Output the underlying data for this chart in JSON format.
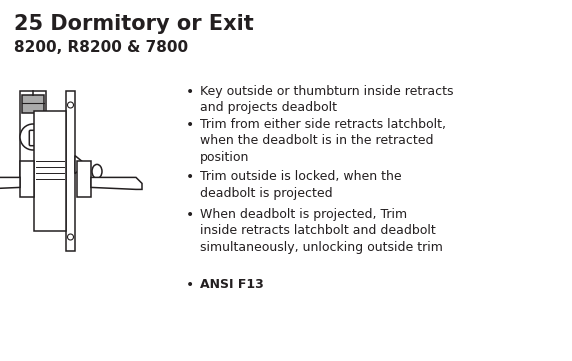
{
  "title": "25 Dormitory or Exit",
  "subtitle": "8200, R8200 & 7800",
  "bullet_points": [
    "Key outside or thumbturn inside retracts\nand projects deadbolt",
    "Trim from either side retracts latchbolt,\nwhen the deadbolt is in the retracted\nposition",
    "Trim outside is locked, when the\ndeadbolt is projected",
    "When deadbolt is projected, Trim\ninside retracts latchbolt and deadbolt\nsimultaneously, unlocking outside trim",
    "ANSI F13"
  ],
  "last_bullet_bold": true,
  "bg_color": "#ffffff",
  "text_color": "#231f20",
  "title_fontsize": 15,
  "subtitle_fontsize": 11,
  "bullet_fontsize": 9,
  "fig_width": 5.72,
  "fig_height": 3.61
}
